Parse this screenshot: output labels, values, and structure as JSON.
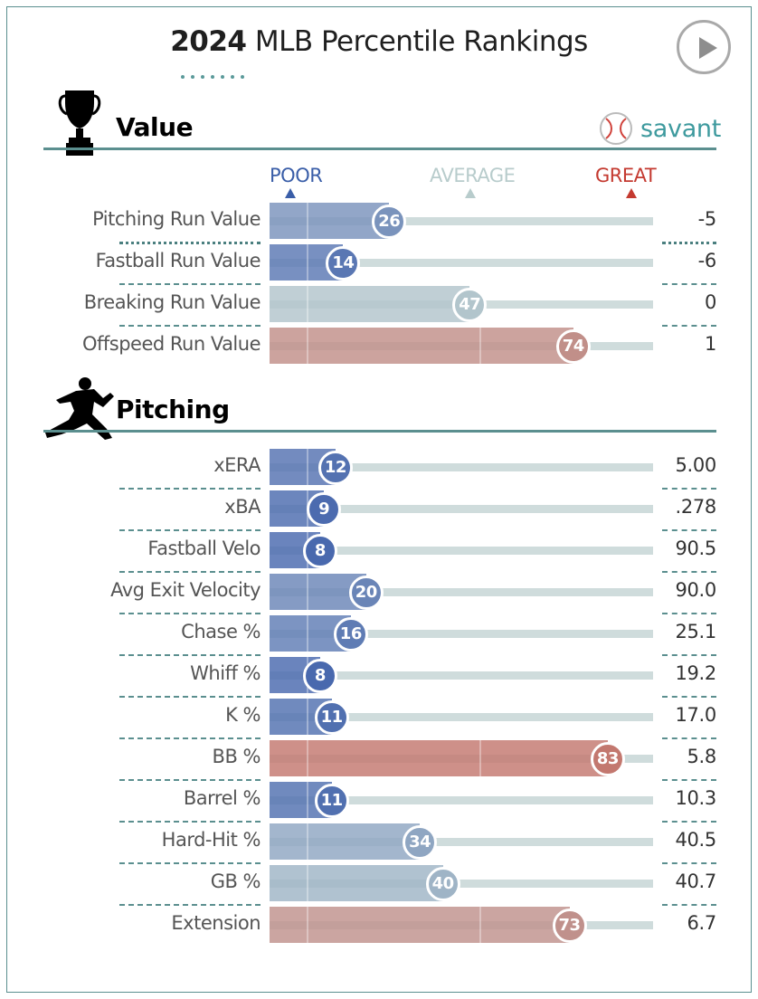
{
  "title": {
    "year": "2024",
    "rest": " MLB Percentile Rankings"
  },
  "sections": [
    {
      "name": "Value",
      "icon": "trophy-icon"
    },
    {
      "name": "Pitching",
      "icon": "pitcher-icon"
    }
  ],
  "brand": {
    "text": "savant",
    "icon": "baseball-icon",
    "color": "#3e9a9e"
  },
  "scale": {
    "poor": "POOR",
    "average": "AVERAGE",
    "great": "GREAT",
    "poor_color": "#3a5ea8",
    "average_color": "#b8cccc",
    "great_color": "#c43a30"
  },
  "chart_data": {
    "type": "bar",
    "title": "2024 MLB Percentile Rankings",
    "xlim": [
      0,
      100
    ],
    "groups": [
      {
        "name": "Value",
        "rows": [
          {
            "label": "Pitching Run Value",
            "percentile": 26,
            "value": "-5"
          },
          {
            "label": "Fastball Run Value",
            "percentile": 14,
            "value": "-6"
          },
          {
            "label": "Breaking Run Value",
            "percentile": 47,
            "value": "0"
          },
          {
            "label": "Offspeed Run Value",
            "percentile": 74,
            "value": "1"
          }
        ]
      },
      {
        "name": "Pitching",
        "rows": [
          {
            "label": "xERA",
            "percentile": 12,
            "value": "5.00"
          },
          {
            "label": "xBA",
            "percentile": 9,
            "value": ".278"
          },
          {
            "label": "Fastball Velo",
            "percentile": 8,
            "value": "90.5"
          },
          {
            "label": "Avg Exit Velocity",
            "percentile": 20,
            "value": "90.0"
          },
          {
            "label": "Chase %",
            "percentile": 16,
            "value": "25.1"
          },
          {
            "label": "Whiff %",
            "percentile": 8,
            "value": "19.2"
          },
          {
            "label": "K %",
            "percentile": 11,
            "value": "17.0"
          },
          {
            "label": "BB %",
            "percentile": 83,
            "value": "5.8"
          },
          {
            "label": "Barrel %",
            "percentile": 11,
            "value": "10.3"
          },
          {
            "label": "Hard-Hit %",
            "percentile": 34,
            "value": "40.5"
          },
          {
            "label": "GB %",
            "percentile": 40,
            "value": "40.7"
          },
          {
            "label": "Extension",
            "percentile": 73,
            "value": "6.7"
          }
        ]
      }
    ]
  }
}
